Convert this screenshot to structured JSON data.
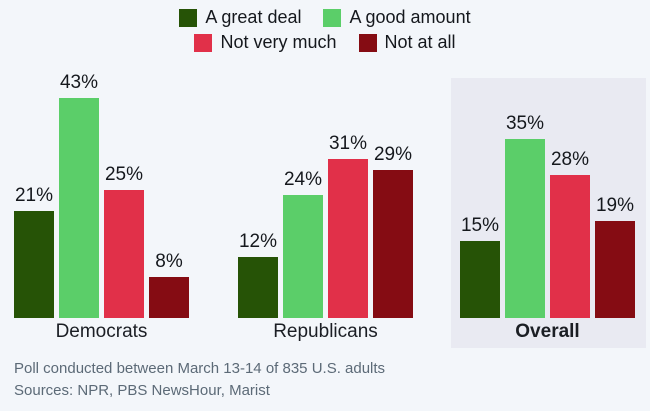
{
  "page": {
    "background": "#f3f6fa"
  },
  "chart_data": {
    "type": "bar",
    "unit": "%",
    "title": "",
    "categories": [
      "Democrats",
      "Republicans",
      "Overall"
    ],
    "highlight_category": "Overall",
    "series": [
      {
        "name": "A great deal",
        "color": "#265306",
        "values": [
          21,
          12,
          15
        ]
      },
      {
        "name": "A good amount",
        "color": "#5bce69",
        "values": [
          43,
          24,
          35
        ]
      },
      {
        "name": "Not very much",
        "color": "#e13049",
        "values": [
          25,
          31,
          28
        ]
      },
      {
        "name": "Not at all",
        "color": "#850c13",
        "values": [
          8,
          29,
          19
        ]
      }
    ],
    "legend_rows": [
      [
        0,
        1
      ],
      [
        2,
        3
      ]
    ],
    "legend_position": "top",
    "grid": false,
    "ylim": [
      0,
      45
    ],
    "value_labels_shown": true
  },
  "footer": {
    "line1": "Poll conducted between March 13-14 of 835 U.S. adults",
    "line2": "Sources: NPR, PBS NewsHour, Marist"
  },
  "colors": {
    "highlight_box": "#e9eaf2",
    "value_text": "#15181d",
    "category_text": "#1b1e24",
    "footer_text": "#5c6a77"
  }
}
